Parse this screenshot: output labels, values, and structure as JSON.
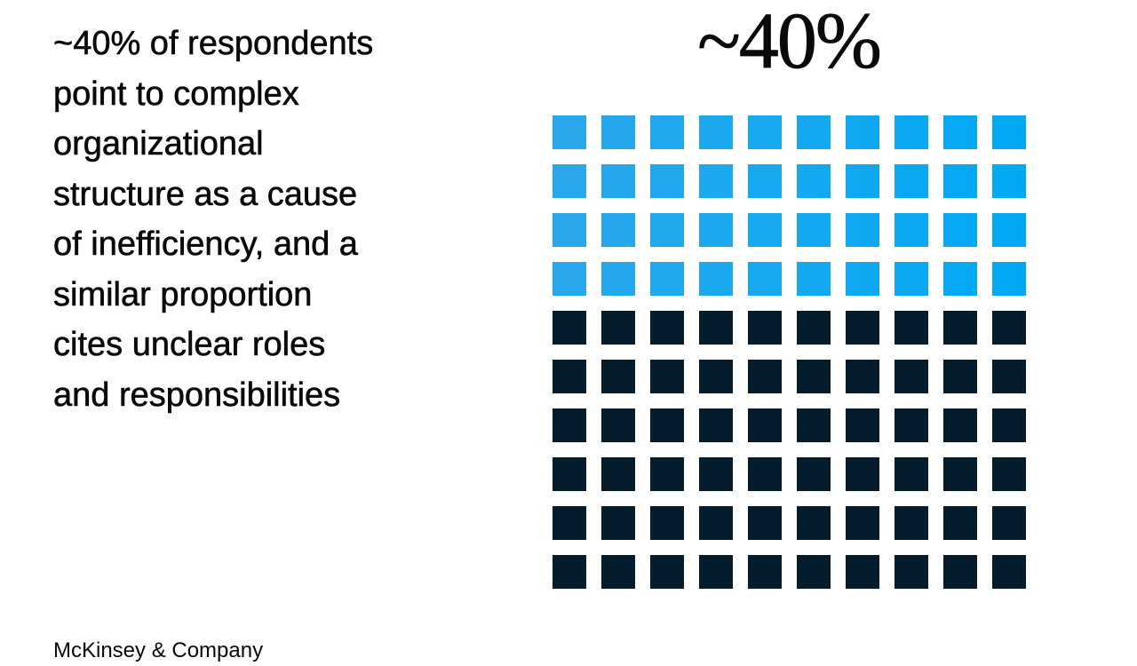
{
  "headline": {
    "lines": [
      "~40% of respondents",
      "point to complex",
      "organizational",
      "structure as a cause",
      "of inefficiency, and a",
      "similar proportion",
      "cites unclear roles",
      "and responsibilities"
    ]
  },
  "brand": "McKinsey & Company",
  "colors": {
    "highlight_gradient_start": "#2aa7ec",
    "highlight_gradient_end": "#00a9f4",
    "base": "#051c2c",
    "background": "#ffffff"
  },
  "chart_data": {
    "type": "waffle",
    "title": "~40%",
    "rows": 10,
    "columns": 10,
    "total_units": 100,
    "highlighted_units": 40,
    "highlighted_share": 0.4,
    "fill_order": "rows from top, left to right"
  }
}
